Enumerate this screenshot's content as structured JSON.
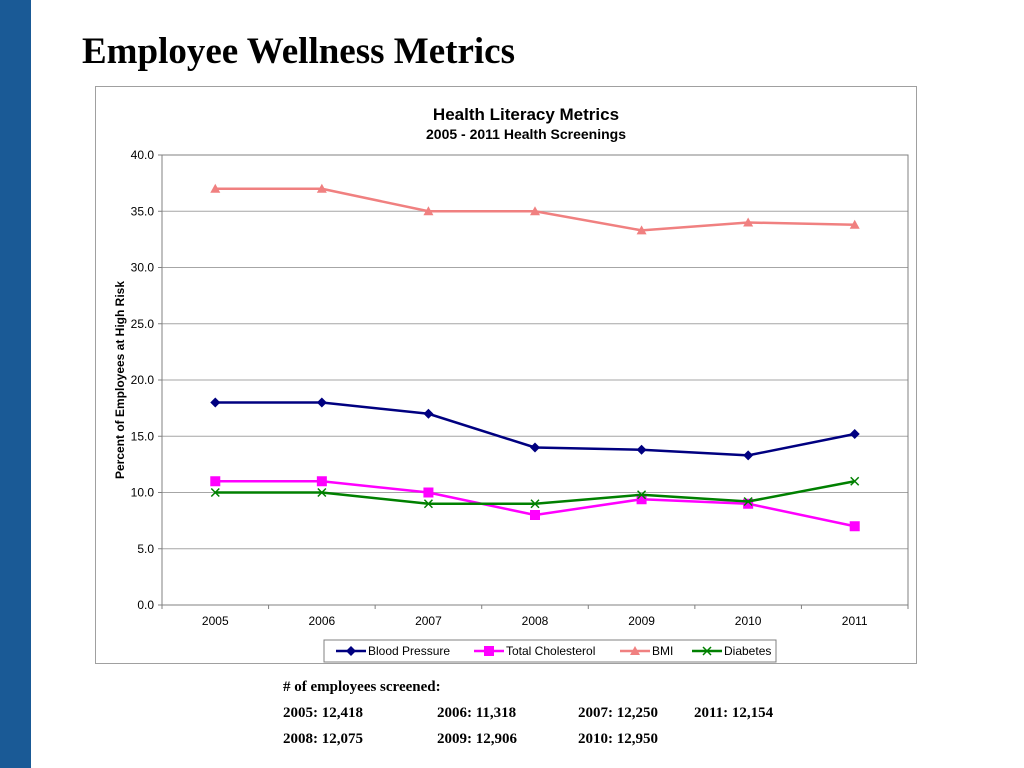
{
  "slide": {
    "title": "Employee Wellness Metrics",
    "accent_color": "#1a5a96"
  },
  "chart_data": {
    "type": "line",
    "title": "Health Literacy Metrics",
    "subtitle": "2005 - 2011 Health Screenings",
    "xlabel": "",
    "ylabel": "Percent of Employees at High Risk",
    "categories": [
      "2005",
      "2006",
      "2007",
      "2008",
      "2009",
      "2010",
      "2011"
    ],
    "ylim": [
      0,
      40
    ],
    "yticks": [
      "0.0",
      "5.0",
      "10.0",
      "15.0",
      "20.0",
      "25.0",
      "30.0",
      "35.0",
      "40.0"
    ],
    "grid": true,
    "legend_position": "bottom",
    "series": [
      {
        "name": "Blood Pressure",
        "values": [
          18.0,
          18.0,
          17.0,
          14.0,
          13.8,
          13.3,
          15.2
        ],
        "color": "#000080",
        "marker": "diamond"
      },
      {
        "name": "Total Cholesterol",
        "values": [
          11.0,
          11.0,
          10.0,
          8.0,
          9.4,
          9.0,
          7.0
        ],
        "color": "#ff00ff",
        "marker": "square"
      },
      {
        "name": "BMI",
        "values": [
          37.0,
          37.0,
          35.0,
          35.0,
          33.3,
          34.0,
          33.8
        ],
        "color": "#f08080",
        "marker": "triangle"
      },
      {
        "name": "Diabetes",
        "values": [
          10.0,
          10.0,
          9.0,
          9.0,
          9.8,
          9.2,
          11.0
        ],
        "color": "#008000",
        "marker": "x"
      }
    ]
  },
  "notes": {
    "heading": "# of employees screened:",
    "rows": [
      [
        "2005: 12,418",
        "2006: 11,318",
        "2007: 12,250",
        "2011: 12,154"
      ],
      [
        "2008: 12,075",
        "2009: 12,906",
        "2010: 12,950"
      ]
    ]
  }
}
